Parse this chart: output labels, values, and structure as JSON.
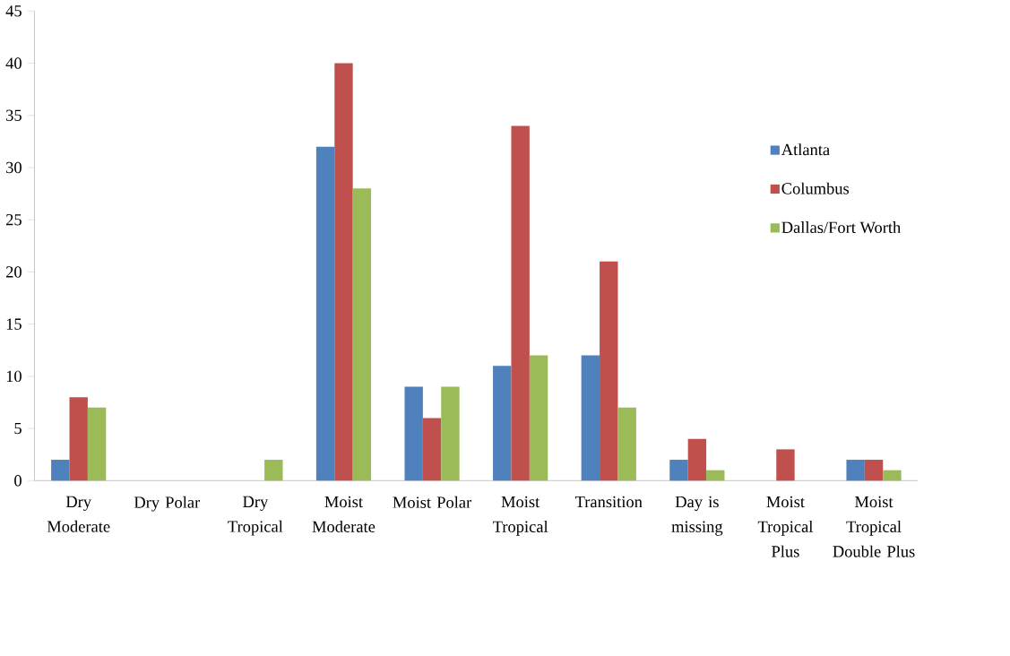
{
  "chart_data": {
    "type": "bar",
    "categories": [
      "Dry Moderate",
      "Dry Polar",
      "Dry Tropical",
      "Moist Moderate",
      "Moist Polar",
      "Moist Tropical",
      "Transition",
      "Day is missing",
      "Moist Tropical Plus",
      "Moist Tropical Double Plus"
    ],
    "series": [
      {
        "name": "Atlanta",
        "color": "#4f81bd",
        "values": [
          2,
          0,
          0,
          32,
          9,
          11,
          12,
          2,
          0,
          2
        ]
      },
      {
        "name": "Columbus",
        "color": "#c0504d",
        "values": [
          8,
          0,
          0,
          40,
          6,
          34,
          21,
          4,
          3,
          2
        ]
      },
      {
        "name": "Dallas/Fort Worth",
        "color": "#9bbb59",
        "values": [
          7,
          0,
          2,
          28,
          9,
          12,
          7,
          1,
          0,
          1
        ]
      }
    ],
    "ylim": [
      0,
      45
    ],
    "yticks": [
      0,
      5,
      10,
      15,
      20,
      25,
      30,
      35,
      40,
      45
    ],
    "legend": "right"
  }
}
